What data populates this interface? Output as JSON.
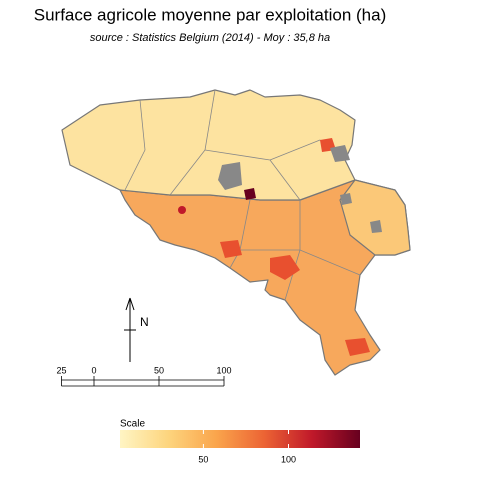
{
  "title": "Surface agricole moyenne par exploitation (ha)",
  "subtitle": "source : Statistics Belgium (2014) - Moy : 35,8 ha",
  "north_arrow": {
    "label": "N"
  },
  "scale_bar": {
    "ticks": [
      {
        "value": -25,
        "label": "25"
      },
      0,
      50,
      100
    ]
  },
  "legend": {
    "title": "Scale",
    "range": [
      1,
      142
    ],
    "ticks": [
      50,
      100
    ],
    "colors": [
      "#fff5c4",
      "#fdd57e",
      "#faa54c",
      "#ec6434",
      "#c0192a",
      "#67001f"
    ]
  }
}
